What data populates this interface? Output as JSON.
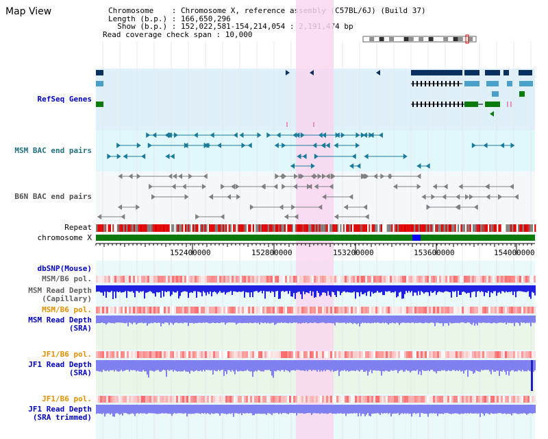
{
  "page": {
    "title": "Map View"
  },
  "info": {
    "chromosome": "Chromosome    : Chromosome X, reference assembly (C57BL/6J) (Build 37)",
    "length": "Length (b.p.) : 166,650,296",
    "show": "  Show (b.p.) : 152,022,581-154,214,054 : 2,191,474 bp",
    "coverage": "Read coverage check span : 10,000"
  },
  "tracks": {
    "refseq": "RefSeq Genes",
    "msm_bac": "MSM BAC end pairs",
    "b6n_bac": "B6N BAC end pairs",
    "repeat": "Repeat",
    "chromosome": "chromosome X",
    "dbsnp": "dbSNP(Mouse)",
    "msm_pol": "MSM/B6 pol.",
    "msm_depth_cap_1": "MSM Read Depth",
    "msm_depth_cap_2": "(Capillary)",
    "msm_pol2": "MSM/B6 pol.",
    "msm_depth_sra_1": "MSM Read Depth",
    "msm_depth_sra_2": "(SRA)",
    "jf1_pol": "JF1/B6 pol.",
    "jf1_depth_sra_1": "JF1 Read Depth",
    "jf1_depth_sra_2": "(SRA)",
    "jf1_pol2": "JF1/B6 pol.",
    "jf1_depth_trim_1": "JF1 Read Depth",
    "jf1_depth_trim_2": "(SRA trimmed)"
  },
  "axis": {
    "ticks": [
      "152400000",
      "152800000",
      "153200000",
      "153600000",
      "154000000"
    ]
  },
  "colors": {
    "refseq_bg": "#dff0fa",
    "bac_bg": "#e0f8fa",
    "highlight": "#f9d7ef",
    "chrom": "#0a7a0a",
    "chrom_mark": "#0000ff",
    "gene_dark": "#0a3060",
    "gene_mid": "#4aa0c8",
    "gene_green": "#0a7a0a",
    "msm_bac": "#1a7a9a",
    "b6n_bac": "#808080",
    "depth_blue": "#2020e0",
    "depth_light": "#8080f0",
    "label_blue": "#0000c0",
    "label_orange": "#e09000",
    "label_teal": "#207080"
  }
}
